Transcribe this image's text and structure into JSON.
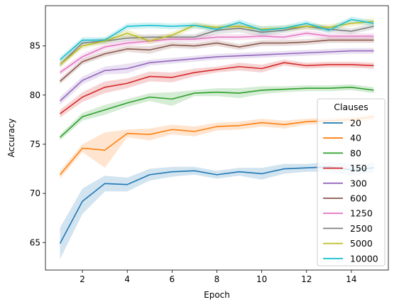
{
  "chart_data": {
    "type": "line",
    "title": "",
    "xlabel": "Epoch",
    "ylabel": "Accuracy",
    "xlim": [
      0.35,
      15.65
    ],
    "ylim": [
      62.2,
      89.1
    ],
    "xticks": [
      2,
      4,
      6,
      8,
      10,
      12,
      14
    ],
    "yticks": [
      65,
      70,
      75,
      80,
      85
    ],
    "grid": false,
    "legend": {
      "title": "Clauses",
      "placement": "lower-right"
    },
    "x": [
      1,
      2,
      3,
      4,
      5,
      6,
      7,
      8,
      9,
      10,
      11,
      12,
      13,
      14,
      15
    ],
    "series": [
      {
        "name": "20",
        "color": "#1f77b4",
        "values": [
          64.9,
          69.2,
          71.0,
          70.9,
          71.9,
          72.2,
          72.3,
          71.9,
          72.2,
          72.0,
          72.5,
          72.6,
          72.7,
          72.4,
          72.6
        ],
        "band": [
          1.6,
          1.3,
          0.8,
          0.7,
          0.6,
          0.5,
          0.4,
          0.4,
          0.4,
          0.6,
          0.5,
          0.4,
          0.5,
          0.6,
          0.5
        ]
      },
      {
        "name": "40",
        "color": "#ff7f0e",
        "values": [
          71.9,
          74.6,
          74.4,
          76.1,
          76.0,
          76.5,
          76.3,
          76.8,
          76.9,
          77.2,
          77.0,
          77.3,
          77.4,
          77.5,
          77.8
        ],
        "band": [
          0.4,
          0.4,
          1.8,
          0.4,
          0.6,
          0.5,
          0.5,
          0.4,
          0.4,
          0.4,
          0.4,
          0.3,
          0.3,
          0.3,
          0.3
        ]
      },
      {
        "name": "80",
        "color": "#2ca02c",
        "values": [
          75.7,
          77.8,
          78.5,
          79.2,
          79.8,
          79.6,
          80.2,
          80.3,
          80.2,
          80.5,
          80.6,
          80.7,
          80.7,
          80.8,
          80.5
        ],
        "band": [
          0.3,
          0.4,
          0.5,
          0.4,
          0.4,
          0.7,
          0.3,
          0.4,
          0.5,
          0.4,
          0.3,
          0.3,
          0.3,
          0.3,
          0.3
        ]
      },
      {
        "name": "150",
        "color": "#d62728",
        "values": [
          78.1,
          79.8,
          80.8,
          81.2,
          81.9,
          81.8,
          82.3,
          82.6,
          82.9,
          82.7,
          83.3,
          83.0,
          83.1,
          83.1,
          83.0
        ],
        "band": [
          0.4,
          0.5,
          0.6,
          0.5,
          0.5,
          0.5,
          0.4,
          0.3,
          0.4,
          0.4,
          0.3,
          0.3,
          0.3,
          0.3,
          0.3
        ]
      },
      {
        "name": "300",
        "color": "#9467bd",
        "values": [
          79.4,
          81.5,
          82.5,
          82.7,
          83.3,
          83.5,
          83.7,
          83.9,
          84.0,
          84.1,
          84.2,
          84.3,
          84.4,
          84.5,
          84.5
        ],
        "band": [
          0.4,
          0.4,
          0.4,
          0.5,
          0.3,
          0.3,
          0.3,
          0.3,
          0.3,
          0.3,
          0.3,
          0.3,
          0.3,
          0.3,
          0.3
        ]
      },
      {
        "name": "600",
        "color": "#8c564b",
        "values": [
          81.4,
          83.4,
          84.2,
          84.7,
          84.6,
          85.1,
          85.0,
          85.3,
          84.9,
          85.3,
          85.3,
          85.4,
          85.6,
          85.6,
          85.6
        ],
        "band": [
          0.3,
          0.3,
          0.3,
          0.3,
          0.4,
          0.3,
          0.3,
          0.3,
          0.3,
          0.3,
          0.3,
          0.3,
          0.3,
          0.3,
          0.3
        ]
      },
      {
        "name": "1250",
        "color": "#e377c2",
        "values": [
          82.3,
          83.9,
          84.9,
          85.3,
          85.5,
          85.7,
          85.7,
          85.9,
          85.9,
          86.0,
          85.9,
          86.3,
          86.0,
          86.0,
          86.0
        ],
        "band": [
          0.3,
          0.3,
          0.3,
          0.3,
          0.3,
          0.3,
          0.3,
          0.3,
          0.3,
          0.3,
          0.3,
          0.3,
          0.3,
          0.3,
          0.3
        ]
      },
      {
        "name": "2500",
        "color": "#7f7f7f",
        "values": [
          83.1,
          85.3,
          85.5,
          85.8,
          85.9,
          85.9,
          85.9,
          86.6,
          86.8,
          86.4,
          86.6,
          87.0,
          86.7,
          86.5,
          87.0
        ],
        "band": [
          0.3,
          0.3,
          0.3,
          0.3,
          0.3,
          0.3,
          0.3,
          0.4,
          0.4,
          0.4,
          0.3,
          0.3,
          0.3,
          0.3,
          0.3
        ]
      },
      {
        "name": "5000",
        "color": "#bcbd22",
        "values": [
          83.1,
          85.0,
          85.5,
          86.3,
          85.5,
          86.1,
          87.1,
          86.9,
          87.0,
          86.7,
          86.8,
          87.0,
          86.9,
          87.3,
          87.5
        ],
        "band": [
          0.3,
          0.3,
          0.3,
          0.4,
          0.3,
          0.3,
          0.3,
          0.3,
          0.3,
          0.3,
          0.3,
          0.3,
          0.3,
          0.3,
          0.3
        ]
      },
      {
        "name": "10000",
        "color": "#17becf",
        "values": [
          83.6,
          85.6,
          85.6,
          87.0,
          87.1,
          87.0,
          87.1,
          86.7,
          87.4,
          86.6,
          86.8,
          87.3,
          86.6,
          87.7,
          87.3
        ],
        "band": [
          0.3,
          0.3,
          0.3,
          0.3,
          0.3,
          0.3,
          0.3,
          0.3,
          0.3,
          0.4,
          0.3,
          0.3,
          0.3,
          0.3,
          0.3
        ]
      }
    ]
  }
}
